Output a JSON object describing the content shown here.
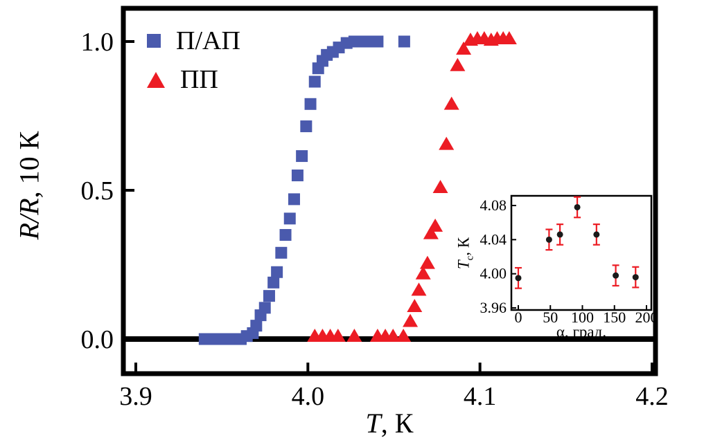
{
  "figure": {
    "background": "#ffffff",
    "colors": {
      "background": "#ffffff",
      "blue": "#4a5aad",
      "red": "#ec1c24",
      "axis": "#000000",
      "error_bar": "#ec1c24",
      "inset_point": "#1a1a1a"
    },
    "axes": {
      "y_label_italic": "R/R",
      "y_label_rest": ", 10 К",
      "x_label_italic": "T",
      "x_label_rest": ", К"
    },
    "inset_axes": {
      "y_label_italic": "T",
      "y_label_sub": "c",
      "y_label_rest": ", К",
      "x_label": "α, град."
    }
  },
  "chart_data": [
    {
      "type": "scatter",
      "role": "main",
      "title": "",
      "xlabel": "T, К",
      "ylabel": "R/R, 10 К",
      "xlim": [
        3.9,
        4.2
      ],
      "ylim": [
        -0.12,
        1.12
      ],
      "xticks": [
        3.9,
        4.0,
        4.1,
        4.2
      ],
      "xtick_labels": [
        "3.9",
        "4.0",
        "4.1",
        "4.2"
      ],
      "yticks": [
        0.0,
        0.5,
        1.0
      ],
      "ytick_labels": [
        "0.0",
        "0.5",
        "1.0"
      ],
      "grid": false,
      "legend_position": "top-left",
      "series": [
        {
          "name": "П/АП",
          "marker": "square",
          "color": "#4a5aad",
          "points": [
            [
              3.94,
              0.0
            ],
            [
              3.9435,
              0.0
            ],
            [
              3.947,
              0.0
            ],
            [
              3.9505,
              0.0
            ],
            [
              3.954,
              0.0
            ],
            [
              3.9575,
              0.0
            ],
            [
              3.961,
              0.0
            ],
            [
              3.9645,
              0.01
            ],
            [
              3.968,
              0.02
            ],
            [
              3.97,
              0.045
            ],
            [
              3.9725,
              0.08
            ],
            [
              3.975,
              0.105
            ],
            [
              3.9775,
              0.145
            ],
            [
              3.98,
              0.19
            ],
            [
              3.982,
              0.225
            ],
            [
              3.9845,
              0.29
            ],
            [
              3.987,
              0.35
            ],
            [
              3.9895,
              0.405
            ],
            [
              3.992,
              0.47
            ],
            [
              3.994,
              0.55
            ],
            [
              3.9965,
              0.615
            ],
            [
              3.999,
              0.715
            ],
            [
              4.0015,
              0.79
            ],
            [
              4.004,
              0.865
            ],
            [
              4.006,
              0.91
            ],
            [
              4.0085,
              0.935
            ],
            [
              4.011,
              0.955
            ],
            [
              4.0145,
              0.965
            ],
            [
              4.018,
              0.98
            ],
            [
              4.0225,
              0.995
            ],
            [
              4.027,
              1.0
            ],
            [
              4.0315,
              1.0
            ],
            [
              4.036,
              1.0
            ],
            [
              4.0405,
              1.0
            ],
            [
              4.056,
              1.0
            ]
          ]
        },
        {
          "name": "ПП",
          "marker": "triangle",
          "color": "#ec1c24",
          "points": [
            [
              4.004,
              0.0
            ],
            [
              4.0085,
              0.0
            ],
            [
              4.013,
              0.0
            ],
            [
              4.0175,
              0.0
            ],
            [
              4.027,
              0.0
            ],
            [
              4.0405,
              0.0
            ],
            [
              4.045,
              0.0
            ],
            [
              4.0495,
              0.0
            ],
            [
              4.0555,
              0.0
            ],
            [
              4.0595,
              0.05
            ],
            [
              4.062,
              0.1
            ],
            [
              4.0645,
              0.155
            ],
            [
              4.067,
              0.21
            ],
            [
              4.0695,
              0.245
            ],
            [
              4.0715,
              0.345
            ],
            [
              4.074,
              0.37
            ],
            [
              4.077,
              0.5
            ],
            [
              4.0805,
              0.645
            ],
            [
              4.0835,
              0.78
            ],
            [
              4.087,
              0.91
            ],
            [
              4.0905,
              0.965
            ],
            [
              4.0945,
              0.995
            ],
            [
              4.0985,
              1.0
            ],
            [
              4.1025,
              1.0
            ],
            [
              4.1065,
              0.995
            ],
            [
              4.11,
              1.0
            ],
            [
              4.1135,
              1.0
            ],
            [
              4.117,
              1.0
            ]
          ]
        }
      ]
    },
    {
      "type": "scatter",
      "role": "inset",
      "title": "",
      "xlabel": "α, град.",
      "ylabel": "Tc, К",
      "xlim": [
        -15,
        215
      ],
      "ylim": [
        3.955,
        4.095
      ],
      "xticks": [
        0,
        50,
        100,
        150,
        200
      ],
      "xtick_labels": [
        "0",
        "50",
        "100",
        "150",
        "200"
      ],
      "yticks": [
        3.96,
        4.0,
        4.04,
        4.08
      ],
      "ytick_labels": [
        "3.96",
        "4.00",
        "4.04",
        "4.08"
      ],
      "grid": false,
      "series": [
        {
          "name": "Tc(α)",
          "marker": "circle",
          "color": "#1a1a1a",
          "error_color": "#ec1c24",
          "points": [
            [
              0,
              3.995,
              0.012
            ],
            [
              48,
              4.04,
              0.012
            ],
            [
              65,
              4.046,
              0.012
            ],
            [
              92,
              4.078,
              0.012
            ],
            [
              122,
              4.046,
              0.012
            ],
            [
              152,
              3.998,
              0.012
            ],
            [
              183,
              3.996,
              0.012
            ]
          ]
        }
      ]
    }
  ]
}
